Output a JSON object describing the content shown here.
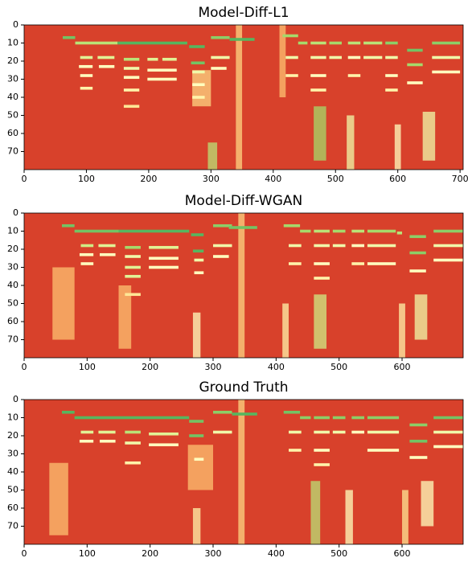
{
  "chart_data": [
    {
      "type": "heatmap",
      "title": "Model-Diff-L1",
      "xlim": [
        0,
        705
      ],
      "ylim": [
        80,
        0
      ],
      "xticks": [
        0,
        100,
        200,
        300,
        400,
        500,
        600,
        700
      ],
      "yticks": [
        0,
        10,
        20,
        30,
        40,
        50,
        60,
        70
      ],
      "background": "#d8412b",
      "colors": [
        "#d73027",
        "#f46d43",
        "#fdae61",
        "#fee08b",
        "#ffffbf",
        "#d9ef8b",
        "#a6d96a",
        "#66bd63",
        "#1a9850"
      ],
      "segments": [
        [
          62,
          82,
          7,
          0.85
        ],
        [
          82,
          150,
          10,
          0.7
        ],
        [
          150,
          262,
          10,
          0.9
        ],
        [
          265,
          290,
          12,
          0.9
        ],
        [
          300,
          330,
          7,
          0.8
        ],
        [
          330,
          370,
          8,
          0.9
        ],
        [
          415,
          440,
          6,
          0.75
        ],
        [
          440,
          455,
          10,
          0.75
        ],
        [
          460,
          485,
          10,
          0.7
        ],
        [
          490,
          510,
          10,
          0.75
        ],
        [
          520,
          540,
          10,
          0.7
        ],
        [
          545,
          575,
          10,
          0.7
        ],
        [
          580,
          600,
          10,
          0.8
        ],
        [
          615,
          640,
          14,
          0.85
        ],
        [
          655,
          700,
          10,
          0.8
        ],
        [
          90,
          110,
          18,
          0.6
        ],
        [
          118,
          145,
          18,
          0.6
        ],
        [
          160,
          185,
          19,
          0.7
        ],
        [
          198,
          215,
          19,
          0.6
        ],
        [
          222,
          245,
          19,
          0.6
        ],
        [
          268,
          290,
          21,
          0.85
        ],
        [
          88,
          110,
          23,
          0.5
        ],
        [
          120,
          145,
          23,
          0.5
        ],
        [
          160,
          185,
          24,
          0.55
        ],
        [
          198,
          245,
          25,
          0.5
        ],
        [
          270,
          290,
          26,
          0.55
        ],
        [
          90,
          110,
          28,
          0.5
        ],
        [
          160,
          185,
          29,
          0.5
        ],
        [
          198,
          245,
          30,
          0.5
        ],
        [
          300,
          330,
          18,
          0.55
        ],
        [
          300,
          325,
          24,
          0.5
        ],
        [
          420,
          440,
          18,
          0.55
        ],
        [
          460,
          485,
          18,
          0.55
        ],
        [
          490,
          510,
          18,
          0.55
        ],
        [
          520,
          540,
          18,
          0.5
        ],
        [
          545,
          575,
          18,
          0.55
        ],
        [
          580,
          600,
          18,
          0.55
        ],
        [
          615,
          640,
          22,
          0.75
        ],
        [
          655,
          700,
          18,
          0.55
        ],
        [
          420,
          440,
          28,
          0.45
        ],
        [
          460,
          485,
          28,
          0.5
        ],
        [
          520,
          540,
          28,
          0.45
        ],
        [
          580,
          600,
          28,
          0.5
        ],
        [
          655,
          700,
          26,
          0.5
        ],
        [
          90,
          110,
          35,
          0.45
        ],
        [
          160,
          185,
          36,
          0.45
        ],
        [
          270,
          290,
          33,
          0.5
        ],
        [
          460,
          485,
          36,
          0.45
        ],
        [
          580,
          600,
          36,
          0.45
        ],
        [
          615,
          640,
          32,
          0.5
        ],
        [
          160,
          185,
          45,
          0.4
        ],
        [
          270,
          290,
          40,
          0.45
        ]
      ],
      "streaks": [
        [
          295,
          310,
          65,
          80,
          0.7
        ],
        [
          465,
          485,
          45,
          75,
          0.75
        ],
        [
          518,
          530,
          50,
          80,
          0.55
        ],
        [
          640,
          660,
          48,
          75,
          0.55
        ],
        [
          270,
          300,
          25,
          45,
          0.35
        ],
        [
          595,
          605,
          55,
          80,
          0.5
        ],
        [
          340,
          350,
          0,
          80,
          0.35
        ],
        [
          410,
          420,
          0,
          40,
          0.3
        ]
      ]
    },
    {
      "type": "heatmap",
      "title": "Model-Diff-WGAN",
      "xlim": [
        0,
        697
      ],
      "ylim": [
        80,
        0
      ],
      "xticks": [
        0,
        100,
        200,
        300,
        400,
        500,
        600
      ],
      "yticks": [
        0,
        10,
        20,
        30,
        40,
        50,
        60,
        70
      ],
      "background": "#d8412b",
      "colors": [
        "#d73027",
        "#f46d43",
        "#fdae61",
        "#fee08b",
        "#ffffbf",
        "#d9ef8b",
        "#a6d96a",
        "#66bd63",
        "#1a9850"
      ],
      "segments": [
        [
          60,
          80,
          7,
          0.85
        ],
        [
          80,
          150,
          10,
          0.85
        ],
        [
          150,
          262,
          10,
          0.9
        ],
        [
          265,
          285,
          12,
          0.9
        ],
        [
          300,
          330,
          7,
          0.8
        ],
        [
          325,
          370,
          8,
          0.85
        ],
        [
          412,
          438,
          7,
          0.75
        ],
        [
          438,
          455,
          10,
          0.75
        ],
        [
          460,
          485,
          10,
          0.7
        ],
        [
          490,
          510,
          10,
          0.75
        ],
        [
          520,
          540,
          10,
          0.7
        ],
        [
          545,
          590,
          10,
          0.75
        ],
        [
          592,
          600,
          11,
          0.7
        ],
        [
          612,
          638,
          13,
          0.8
        ],
        [
          650,
          697,
          10,
          0.8
        ],
        [
          90,
          110,
          18,
          0.65
        ],
        [
          118,
          145,
          18,
          0.6
        ],
        [
          160,
          185,
          19,
          0.75
        ],
        [
          198,
          245,
          19,
          0.6
        ],
        [
          268,
          285,
          21,
          0.9
        ],
        [
          88,
          110,
          23,
          0.5
        ],
        [
          120,
          145,
          23,
          0.5
        ],
        [
          160,
          185,
          24,
          0.55
        ],
        [
          198,
          245,
          25,
          0.5
        ],
        [
          270,
          285,
          26,
          0.55
        ],
        [
          90,
          110,
          28,
          0.5
        ],
        [
          160,
          185,
          30,
          0.6
        ],
        [
          198,
          245,
          30,
          0.5
        ],
        [
          300,
          330,
          18,
          0.55
        ],
        [
          300,
          325,
          24,
          0.5
        ],
        [
          420,
          440,
          18,
          0.55
        ],
        [
          460,
          485,
          18,
          0.55
        ],
        [
          490,
          510,
          18,
          0.55
        ],
        [
          520,
          540,
          18,
          0.5
        ],
        [
          545,
          590,
          18,
          0.55
        ],
        [
          612,
          638,
          22,
          0.8
        ],
        [
          650,
          697,
          18,
          0.55
        ],
        [
          420,
          440,
          28,
          0.45
        ],
        [
          460,
          485,
          28,
          0.5
        ],
        [
          520,
          540,
          28,
          0.45
        ],
        [
          545,
          590,
          28,
          0.5
        ],
        [
          650,
          697,
          26,
          0.5
        ],
        [
          160,
          185,
          35,
          0.6
        ],
        [
          270,
          285,
          33,
          0.5
        ],
        [
          460,
          485,
          36,
          0.45
        ],
        [
          612,
          638,
          32,
          0.5
        ],
        [
          160,
          185,
          45,
          0.4
        ]
      ],
      "streaks": [
        [
          268,
          280,
          55,
          80,
          0.5
        ],
        [
          460,
          480,
          45,
          75,
          0.65
        ],
        [
          410,
          420,
          50,
          80,
          0.45
        ],
        [
          620,
          640,
          45,
          70,
          0.55
        ],
        [
          45,
          80,
          30,
          70,
          0.3
        ],
        [
          150,
          170,
          40,
          75,
          0.3
        ],
        [
          340,
          350,
          0,
          80,
          0.35
        ],
        [
          595,
          605,
          50,
          80,
          0.45
        ]
      ]
    },
    {
      "type": "heatmap",
      "title": "Ground Truth",
      "xlim": [
        0,
        697
      ],
      "ylim": [
        80,
        0
      ],
      "xticks": [
        0,
        100,
        200,
        300,
        400,
        500,
        600
      ],
      "yticks": [
        0,
        10,
        20,
        30,
        40,
        50,
        60,
        70
      ],
      "background": "#d8412b",
      "colors": [
        "#d73027",
        "#f46d43",
        "#fdae61",
        "#fee08b",
        "#ffffbf",
        "#d9ef8b",
        "#a6d96a",
        "#66bd63",
        "#1a9850"
      ],
      "segments": [
        [
          60,
          80,
          7,
          0.9
        ],
        [
          80,
          150,
          10,
          0.9
        ],
        [
          150,
          262,
          10,
          0.9
        ],
        [
          262,
          285,
          12,
          0.85
        ],
        [
          300,
          330,
          7,
          0.8
        ],
        [
          330,
          370,
          8,
          0.9
        ],
        [
          412,
          438,
          7,
          0.85
        ],
        [
          438,
          455,
          10,
          0.8
        ],
        [
          460,
          485,
          10,
          0.8
        ],
        [
          490,
          510,
          10,
          0.8
        ],
        [
          520,
          540,
          10,
          0.8
        ],
        [
          545,
          595,
          10,
          0.8
        ],
        [
          612,
          640,
          14,
          0.8
        ],
        [
          650,
          697,
          10,
          0.85
        ],
        [
          90,
          110,
          18,
          0.6
        ],
        [
          118,
          145,
          18,
          0.6
        ],
        [
          160,
          185,
          18,
          0.7
        ],
        [
          198,
          245,
          19,
          0.6
        ],
        [
          262,
          285,
          20,
          0.85
        ],
        [
          88,
          110,
          23,
          0.5
        ],
        [
          120,
          145,
          23,
          0.5
        ],
        [
          160,
          185,
          24,
          0.55
        ],
        [
          198,
          245,
          25,
          0.5
        ],
        [
          300,
          330,
          18,
          0.55
        ],
        [
          420,
          440,
          18,
          0.55
        ],
        [
          460,
          485,
          18,
          0.55
        ],
        [
          490,
          510,
          18,
          0.55
        ],
        [
          520,
          540,
          18,
          0.5
        ],
        [
          545,
          595,
          18,
          0.55
        ],
        [
          612,
          640,
          23,
          0.85
        ],
        [
          650,
          697,
          18,
          0.55
        ],
        [
          420,
          440,
          28,
          0.45
        ],
        [
          460,
          485,
          28,
          0.5
        ],
        [
          545,
          595,
          28,
          0.5
        ],
        [
          650,
          697,
          26,
          0.5
        ],
        [
          160,
          185,
          35,
          0.45
        ],
        [
          270,
          285,
          33,
          0.5
        ],
        [
          460,
          485,
          36,
          0.45
        ],
        [
          612,
          640,
          32,
          0.5
        ]
      ],
      "streaks": [
        [
          268,
          280,
          60,
          80,
          0.45
        ],
        [
          455,
          470,
          45,
          80,
          0.7
        ],
        [
          510,
          522,
          50,
          80,
          0.5
        ],
        [
          630,
          650,
          45,
          70,
          0.5
        ],
        [
          40,
          70,
          35,
          75,
          0.3
        ],
        [
          340,
          350,
          0,
          80,
          0.35
        ],
        [
          600,
          610,
          50,
          80,
          0.4
        ],
        [
          260,
          300,
          25,
          50,
          0.3
        ]
      ]
    }
  ]
}
